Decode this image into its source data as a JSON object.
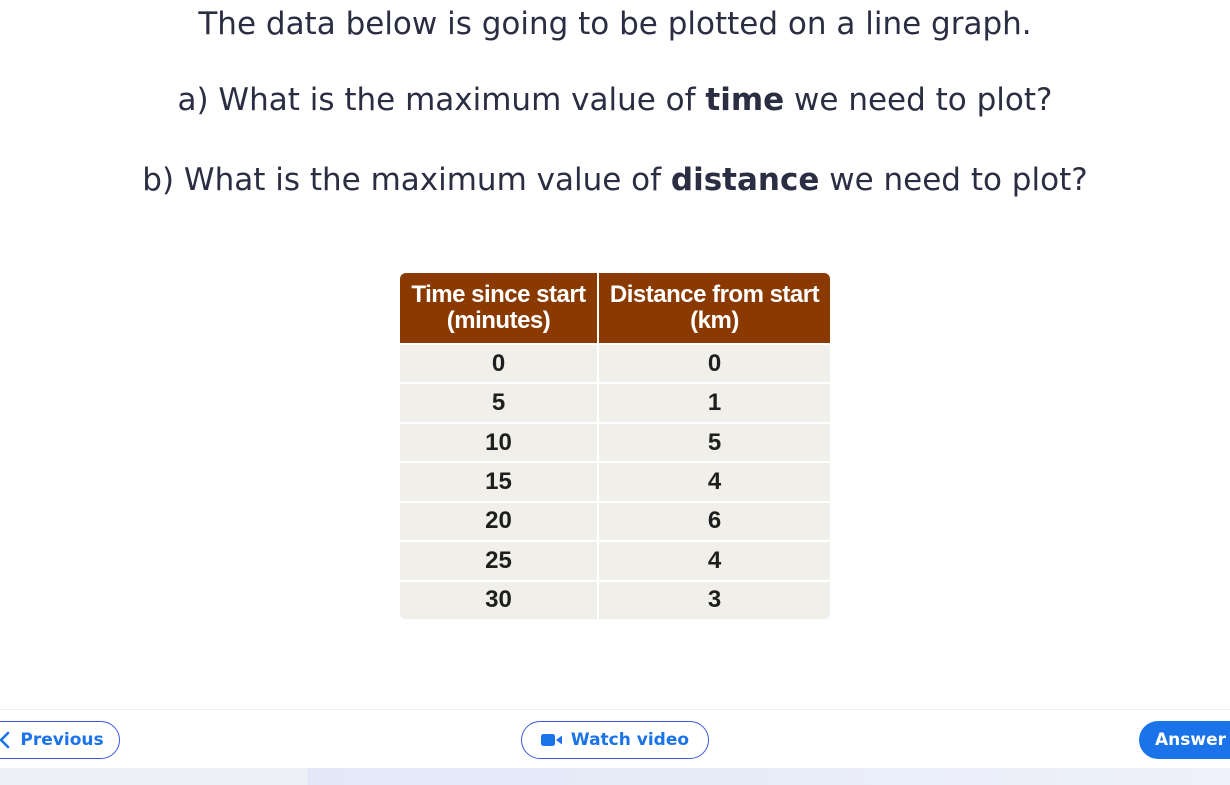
{
  "question": {
    "line1": "The data below is going to be plotted on a line graph.",
    "line2_pre": "a) What is the maximum value of ",
    "line2_bold": "time",
    "line2_post": " we need to plot?",
    "line3_pre": "b) What is the maximum value of ",
    "line3_bold": "distance",
    "line3_post": " we need to plot?"
  },
  "table": {
    "headers": [
      {
        "line1": "Time since start",
        "line2": "(minutes)"
      },
      {
        "line1": "Distance from start",
        "line2": "(km)"
      }
    ],
    "rows": [
      [
        "0",
        "0"
      ],
      [
        "5",
        "1"
      ],
      [
        "10",
        "5"
      ],
      [
        "15",
        "4"
      ],
      [
        "20",
        "6"
      ],
      [
        "25",
        "4"
      ],
      [
        "30",
        "3"
      ]
    ],
    "header_color": "#8a3a00",
    "row_color": "#f1efea"
  },
  "footer": {
    "previous_label": "Previous",
    "previous_icon": "chevron-left-icon",
    "video_label": "Watch video",
    "video_icon": "video-camera-icon",
    "answer_label": "Answer",
    "accent_color": "#1a73e8"
  }
}
